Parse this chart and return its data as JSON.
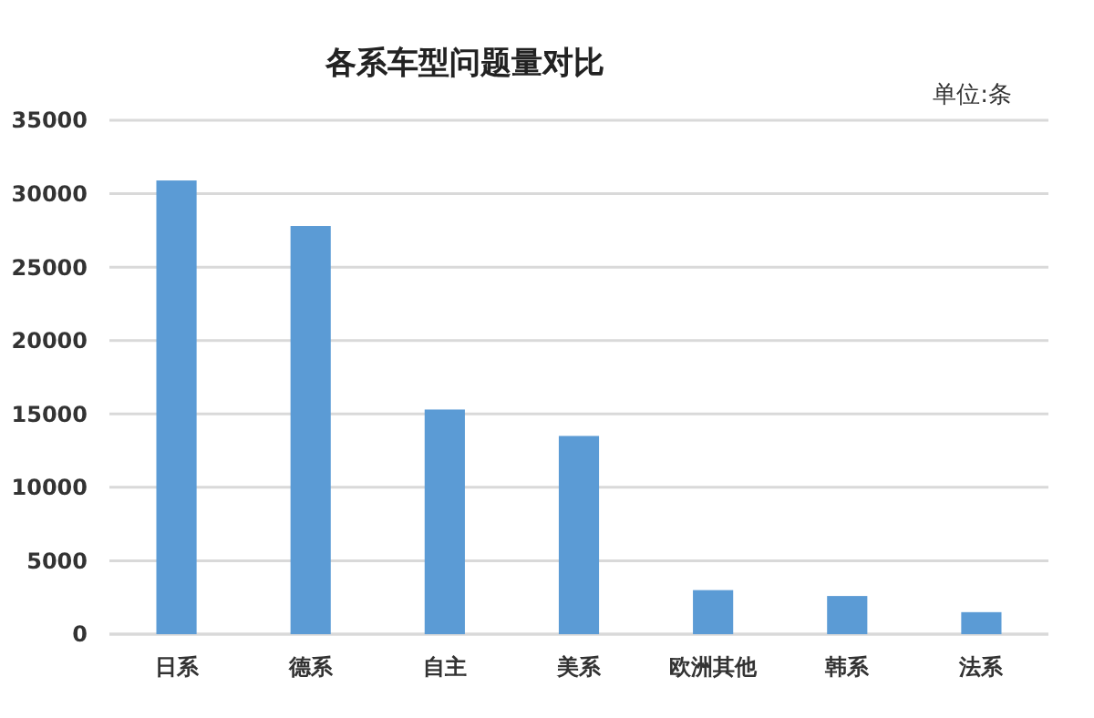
{
  "chart_data": {
    "type": "bar",
    "title": "各系车型问题量对比",
    "annotations": [
      "单位:条"
    ],
    "categories": [
      "日系",
      "德系",
      "自主",
      "美系",
      "欧洲其他",
      "韩系",
      "法系"
    ],
    "values": [
      30900,
      27800,
      15300,
      13500,
      3000,
      2600,
      1500
    ],
    "color": "#5b9bd5",
    "ylim": [
      0,
      35000
    ],
    "yticks": [
      0,
      5000,
      10000,
      15000,
      20000,
      25000,
      30000,
      35000
    ],
    "grid": "y"
  }
}
